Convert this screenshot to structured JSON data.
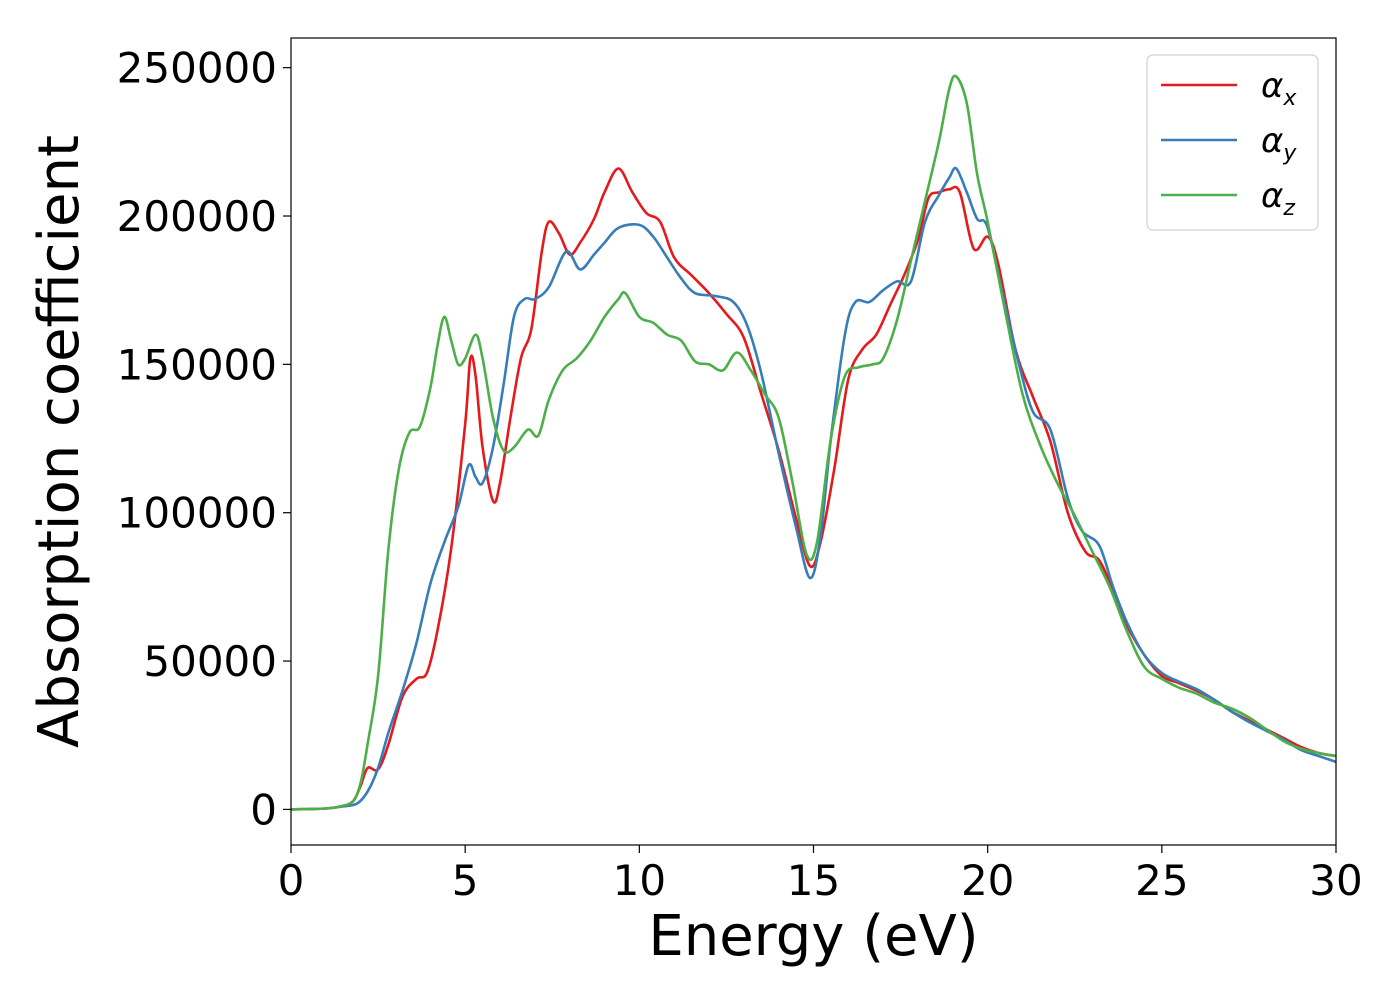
{
  "chart_data": {
    "type": "line",
    "title": "",
    "xlabel": "Energy (eV)",
    "ylabel": "Absorption coefficient",
    "xlim": [
      0,
      30
    ],
    "ylim": [
      -12000,
      260000
    ],
    "xticks": [
      0,
      5,
      10,
      15,
      20,
      25,
      30
    ],
    "yticks": [
      0,
      50000,
      100000,
      150000,
      200000,
      250000
    ],
    "xtick_labels": [
      "0",
      "5",
      "10",
      "15",
      "20",
      "25",
      "30"
    ],
    "ytick_labels": [
      "0",
      "50000",
      "100000",
      "150000",
      "200000",
      "250000"
    ],
    "grid": false,
    "legend_position": "top-right",
    "series": [
      {
        "name": "α",
        "subscript": "x",
        "color": "#e41a1c",
        "points": [
          [
            0,
            0
          ],
          [
            1,
            300
          ],
          [
            1.5,
            1200
          ],
          [
            1.8,
            3000
          ],
          [
            2.0,
            8000
          ],
          [
            2.2,
            14000
          ],
          [
            2.5,
            13500
          ],
          [
            2.8,
            22000
          ],
          [
            3.2,
            38000
          ],
          [
            3.6,
            44000
          ],
          [
            3.9,
            46000
          ],
          [
            4.2,
            60000
          ],
          [
            4.6,
            88000
          ],
          [
            5.0,
            130000
          ],
          [
            5.15,
            152000
          ],
          [
            5.3,
            146000
          ],
          [
            5.5,
            122000
          ],
          [
            5.8,
            104000
          ],
          [
            6.0,
            110000
          ],
          [
            6.3,
            132000
          ],
          [
            6.6,
            152000
          ],
          [
            6.9,
            162000
          ],
          [
            7.2,
            188000
          ],
          [
            7.4,
            198000
          ],
          [
            7.7,
            194000
          ],
          [
            8.0,
            187000
          ],
          [
            8.3,
            191000
          ],
          [
            8.7,
            199000
          ],
          [
            9.0,
            208000
          ],
          [
            9.4,
            216000
          ],
          [
            9.8,
            208000
          ],
          [
            10.2,
            201000
          ],
          [
            10.6,
            198000
          ],
          [
            11.0,
            186000
          ],
          [
            11.5,
            180000
          ],
          [
            12.0,
            174000
          ],
          [
            12.5,
            167000
          ],
          [
            13.0,
            159000
          ],
          [
            13.5,
            140000
          ],
          [
            14.0,
            121000
          ],
          [
            14.5,
            98000
          ],
          [
            14.9,
            82000
          ],
          [
            15.2,
            90000
          ],
          [
            15.6,
            115000
          ],
          [
            16.0,
            145000
          ],
          [
            16.4,
            155000
          ],
          [
            16.8,
            160000
          ],
          [
            17.2,
            170000
          ],
          [
            17.6,
            180000
          ],
          [
            18.0,
            192000
          ],
          [
            18.3,
            206000
          ],
          [
            18.6,
            208000
          ],
          [
            18.9,
            209000
          ],
          [
            19.2,
            208000
          ],
          [
            19.6,
            189000
          ],
          [
            20.0,
            193000
          ],
          [
            20.3,
            184000
          ],
          [
            20.8,
            155000
          ],
          [
            21.3,
            139000
          ],
          [
            21.8,
            124000
          ],
          [
            22.3,
            100000
          ],
          [
            22.8,
            87000
          ],
          [
            23.2,
            84000
          ],
          [
            23.6,
            74000
          ],
          [
            24.0,
            62000
          ],
          [
            24.5,
            52000
          ],
          [
            25.0,
            45000
          ],
          [
            25.5,
            42500
          ],
          [
            26.0,
            40000
          ],
          [
            26.5,
            37000
          ],
          [
            27.0,
            33000
          ],
          [
            27.5,
            30000
          ],
          [
            28.0,
            27000
          ],
          [
            28.5,
            24000
          ],
          [
            29.0,
            21000
          ],
          [
            29.5,
            19000
          ],
          [
            30.0,
            18000
          ]
        ]
      },
      {
        "name": "α",
        "subscript": "y",
        "color": "#377eb8",
        "points": [
          [
            0,
            0
          ],
          [
            1,
            300
          ],
          [
            1.5,
            1000
          ],
          [
            1.9,
            2000
          ],
          [
            2.2,
            6000
          ],
          [
            2.5,
            14000
          ],
          [
            2.8,
            26000
          ],
          [
            3.2,
            40000
          ],
          [
            3.6,
            56000
          ],
          [
            4.0,
            76000
          ],
          [
            4.4,
            90000
          ],
          [
            4.8,
            102000
          ],
          [
            5.1,
            116000
          ],
          [
            5.3,
            112000
          ],
          [
            5.5,
            110000
          ],
          [
            5.8,
            122000
          ],
          [
            6.1,
            143000
          ],
          [
            6.4,
            166000
          ],
          [
            6.7,
            172000
          ],
          [
            7.0,
            172000
          ],
          [
            7.4,
            176000
          ],
          [
            7.9,
            188000
          ],
          [
            8.3,
            182000
          ],
          [
            8.7,
            187000
          ],
          [
            9.0,
            191000
          ],
          [
            9.4,
            196000
          ],
          [
            10.0,
            197000
          ],
          [
            10.4,
            193000
          ],
          [
            10.8,
            186000
          ],
          [
            11.2,
            179000
          ],
          [
            11.6,
            174000
          ],
          [
            12.2,
            173000
          ],
          [
            12.7,
            171000
          ],
          [
            13.1,
            163000
          ],
          [
            13.5,
            147000
          ],
          [
            14.0,
            120000
          ],
          [
            14.5,
            95000
          ],
          [
            14.9,
            78000
          ],
          [
            15.2,
            92000
          ],
          [
            15.5,
            125000
          ],
          [
            15.9,
            160000
          ],
          [
            16.2,
            171000
          ],
          [
            16.6,
            171000
          ],
          [
            17.0,
            175000
          ],
          [
            17.4,
            178000
          ],
          [
            17.8,
            178000
          ],
          [
            18.2,
            198000
          ],
          [
            18.6,
            207000
          ],
          [
            18.9,
            213000
          ],
          [
            19.1,
            216000
          ],
          [
            19.4,
            208000
          ],
          [
            19.7,
            199000
          ],
          [
            20.0,
            196000
          ],
          [
            20.5,
            170000
          ],
          [
            20.9,
            150000
          ],
          [
            21.3,
            134000
          ],
          [
            21.8,
            128000
          ],
          [
            22.3,
            105000
          ],
          [
            22.7,
            94000
          ],
          [
            23.2,
            89000
          ],
          [
            23.6,
            75000
          ],
          [
            24.0,
            63000
          ],
          [
            24.5,
            52000
          ],
          [
            25.0,
            46000
          ],
          [
            25.5,
            43000
          ],
          [
            26.0,
            40500
          ],
          [
            26.5,
            37000
          ],
          [
            27.0,
            33000
          ],
          [
            27.5,
            29500
          ],
          [
            28.0,
            26500
          ],
          [
            28.5,
            23500
          ],
          [
            29.0,
            20000
          ],
          [
            29.5,
            18000
          ],
          [
            30.0,
            16000
          ]
        ]
      },
      {
        "name": "α",
        "subscript": "z",
        "color": "#4daf4a",
        "points": [
          [
            0,
            0
          ],
          [
            1,
            300
          ],
          [
            1.5,
            1200
          ],
          [
            1.8,
            3000
          ],
          [
            2.0,
            9000
          ],
          [
            2.2,
            22000
          ],
          [
            2.5,
            45000
          ],
          [
            2.8,
            88000
          ],
          [
            3.1,
            115000
          ],
          [
            3.4,
            127000
          ],
          [
            3.7,
            129000
          ],
          [
            4.0,
            142000
          ],
          [
            4.2,
            156000
          ],
          [
            4.4,
            166000
          ],
          [
            4.6,
            158000
          ],
          [
            4.8,
            150000
          ],
          [
            5.0,
            152000
          ],
          [
            5.3,
            160000
          ],
          [
            5.5,
            152000
          ],
          [
            5.8,
            132000
          ],
          [
            6.1,
            121000
          ],
          [
            6.4,
            122000
          ],
          [
            6.8,
            128000
          ],
          [
            7.1,
            126000
          ],
          [
            7.4,
            138000
          ],
          [
            7.8,
            148000
          ],
          [
            8.2,
            152000
          ],
          [
            8.6,
            158000
          ],
          [
            9.0,
            166000
          ],
          [
            9.4,
            172000
          ],
          [
            9.6,
            174000
          ],
          [
            10.0,
            166000
          ],
          [
            10.4,
            164000
          ],
          [
            10.8,
            160000
          ],
          [
            11.2,
            158000
          ],
          [
            11.6,
            151000
          ],
          [
            12.0,
            150000
          ],
          [
            12.4,
            148000
          ],
          [
            12.8,
            154000
          ],
          [
            13.2,
            148000
          ],
          [
            13.6,
            140000
          ],
          [
            14.0,
            132000
          ],
          [
            14.4,
            110000
          ],
          [
            14.8,
            86000
          ],
          [
            15.1,
            90000
          ],
          [
            15.5,
            125000
          ],
          [
            15.9,
            146000
          ],
          [
            16.3,
            149000
          ],
          [
            16.7,
            150000
          ],
          [
            17.0,
            152000
          ],
          [
            17.4,
            165000
          ],
          [
            17.8,
            185000
          ],
          [
            18.2,
            205000
          ],
          [
            18.6,
            225000
          ],
          [
            18.9,
            243000
          ],
          [
            19.1,
            247000
          ],
          [
            19.4,
            238000
          ],
          [
            19.7,
            214000
          ],
          [
            20.0,
            198000
          ],
          [
            20.5,
            168000
          ],
          [
            21.0,
            140000
          ],
          [
            21.5,
            123000
          ],
          [
            22.0,
            110000
          ],
          [
            22.5,
            99000
          ],
          [
            23.0,
            87000
          ],
          [
            23.5,
            75000
          ],
          [
            24.0,
            60000
          ],
          [
            24.5,
            48000
          ],
          [
            25.0,
            44000
          ],
          [
            25.5,
            41000
          ],
          [
            26.0,
            39000
          ],
          [
            26.5,
            36000
          ],
          [
            27.0,
            34000
          ],
          [
            27.5,
            31000
          ],
          [
            28.0,
            27000
          ],
          [
            28.5,
            23000
          ],
          [
            29.0,
            20500
          ],
          [
            29.5,
            19000
          ],
          [
            30.0,
            18000
          ]
        ]
      }
    ]
  }
}
